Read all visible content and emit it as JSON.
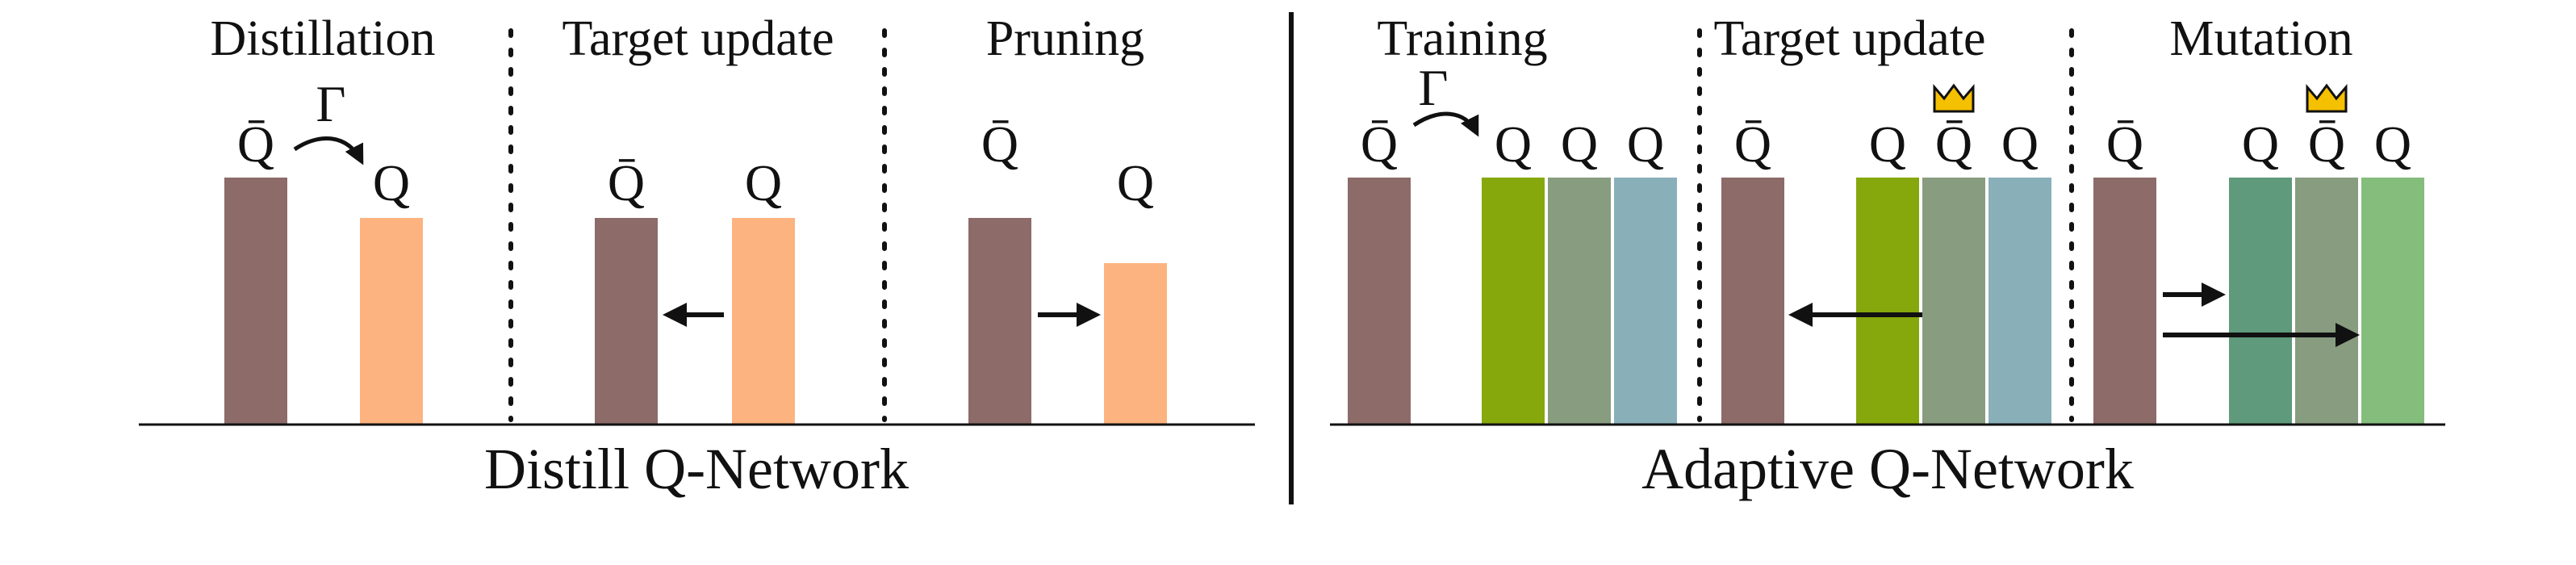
{
  "colors": {
    "target": "#8c6b69",
    "distill_online": "#fdb37f",
    "green_yellow": "#86a80c",
    "gray_green": "#889c80",
    "teal": "#89b0b9",
    "dark_green": "#5e9a7b",
    "light_green": "#84bd7c",
    "crown": "#f5c000",
    "ink": "#111111"
  },
  "symbols": {
    "q": "Q",
    "q_bar": "Q̄",
    "gamma": "Γ"
  },
  "distill": {
    "caption": "Distill Q-Network",
    "stages": [
      {
        "title": "Distillation"
      },
      {
        "title": "Target update"
      },
      {
        "title": "Pruning"
      }
    ]
  },
  "adaptive": {
    "caption": "Adaptive Q-Network",
    "stages": [
      {
        "title": "Training"
      },
      {
        "title": "Target update"
      },
      {
        "title": "Mutation"
      }
    ]
  },
  "icons": [
    "crown-icon",
    "arrow-icon",
    "curved-arrow-icon"
  ]
}
